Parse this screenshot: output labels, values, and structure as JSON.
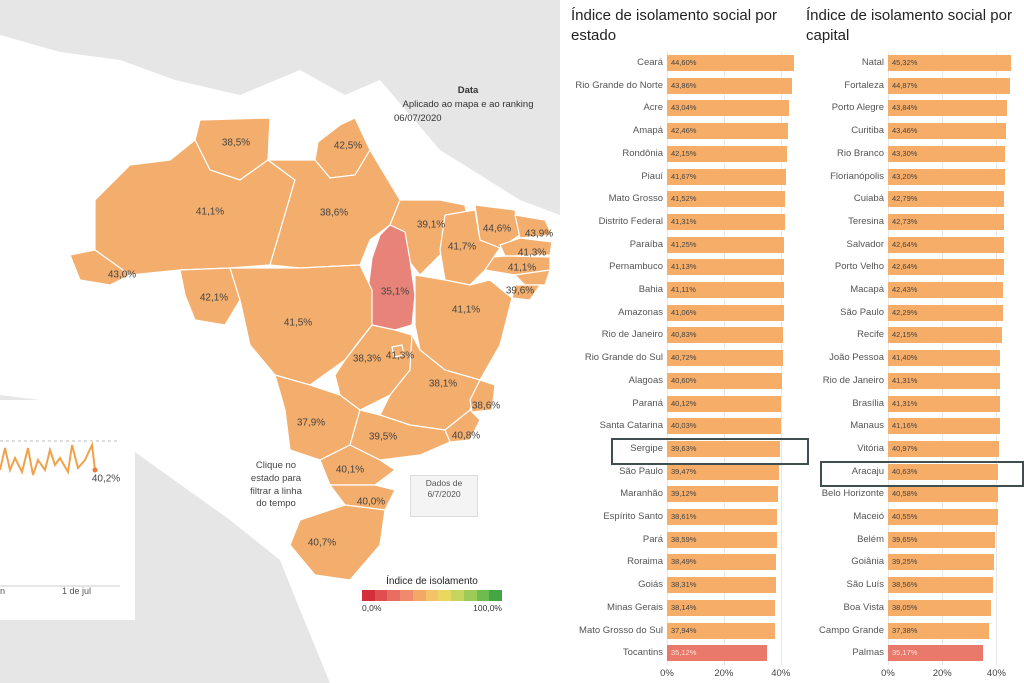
{
  "map": {
    "date_title": "Data",
    "date_applied": "Aplicado ao mapa e ao ranking",
    "date_value": "06/07/2020",
    "click_note": [
      "Clique no",
      "estado para",
      "filtrar a linha",
      "do tempo"
    ],
    "data_note": [
      "Dados de",
      "6/7/2020"
    ],
    "timeline_last_value": "40,2%",
    "timeline_date_tick": "1 de jul",
    "timeline_left_tick": "n",
    "state_values": {
      "RR": "38,5%",
      "AP": "42,5%",
      "AM": "41,1%",
      "PA": "38,6%",
      "MA": "39,1%",
      "CE": "44,6%",
      "RN": "43,9%",
      "PB": "41,3%",
      "PE": "41,1%",
      "PI": "41,7%",
      "AC": "43,0%",
      "RO": "42,1%",
      "TO": "35,1%",
      "MT": "41,5%",
      "BA": "41,1%",
      "SE": "39,6%",
      "GO": "38,3%",
      "DF": "41,3%",
      "MG": "38,1%",
      "ES": "38,6%",
      "RJ": "40,8%",
      "MS": "37,9%",
      "SP": "39,5%",
      "PR": "40,1%",
      "SC": "40,0%",
      "RS": "40,7%"
    },
    "highlight_state": "TO"
  },
  "legend": {
    "title": "Índice de isolamento",
    "min_label": "0,0%",
    "max_label": "100,0%",
    "colors": [
      "#d32f3a",
      "#e14e52",
      "#ea6d64",
      "#f08a6c",
      "#f4a868",
      "#f5c367",
      "#e9d760",
      "#c7d45d",
      "#9ccb57",
      "#6ebb4f",
      "#44a543"
    ]
  },
  "chart_data": [
    {
      "type": "bar",
      "title": "Índice de isolamento social por estado",
      "categories": [
        "Ceará",
        "Rio Grande do Norte",
        "Acre",
        "Amapá",
        "Rondônia",
        "Piauí",
        "Mato Grosso",
        "Distrito Federal",
        "Paraíba",
        "Pernambuco",
        "Bahia",
        "Amazonas",
        "Rio de Janeiro",
        "Rio Grande do Sul",
        "Alagoas",
        "Paraná",
        "Santa Catarina",
        "Sergipe",
        "São Paulo",
        "Maranhão",
        "Espírito Santo",
        "Pará",
        "Roraima",
        "Goiás",
        "Minas Gerais",
        "Mato Grosso do Sul",
        "Tocantins"
      ],
      "values": [
        44.6,
        43.86,
        43.04,
        42.46,
        42.15,
        41.67,
        41.52,
        41.31,
        41.25,
        41.13,
        41.11,
        41.06,
        40.83,
        40.72,
        40.6,
        40.12,
        40.03,
        39.63,
        39.47,
        39.12,
        38.61,
        38.59,
        38.49,
        38.31,
        38.14,
        37.94,
        35.12
      ],
      "labels": [
        "44,60%",
        "43,86%",
        "43,04%",
        "42,46%",
        "42,15%",
        "41,67%",
        "41,52%",
        "41,31%",
        "41,25%",
        "41,13%",
        "41,11%",
        "41,06%",
        "40,83%",
        "40,72%",
        "40,60%",
        "40,12%",
        "40,03%",
        "39,63%",
        "39,47%",
        "39,12%",
        "38,61%",
        "38,59%",
        "38,49%",
        "38,31%",
        "38,14%",
        "37,94%",
        "35,12%"
      ],
      "highlight": "Sergipe",
      "x_ticks": [
        "0%",
        "20%",
        "40%"
      ],
      "xlim": [
        0,
        45
      ]
    },
    {
      "type": "bar",
      "title": "Índice de isolamento social por capital",
      "categories": [
        "Natal",
        "Fortaleza",
        "Porto Alegre",
        "Curitiba",
        "Rio Branco",
        "Florianópolis",
        "Cuiabá",
        "Teresina",
        "Salvador",
        "Porto Velho",
        "Macapá",
        "São Paulo",
        "Recife",
        "João Pessoa",
        "Rio de Janeiro",
        "Brasília",
        "Manaus",
        "Vitória",
        "Aracaju",
        "Belo Horizonte",
        "Maceió",
        "Belém",
        "Goiânia",
        "São Luís",
        "Boa Vista",
        "Campo Grande",
        "Palmas"
      ],
      "values": [
        45.32,
        44.87,
        43.84,
        43.46,
        43.3,
        43.2,
        42.79,
        42.73,
        42.64,
        42.64,
        42.43,
        42.29,
        42.15,
        41.4,
        41.31,
        41.31,
        41.16,
        40.97,
        40.63,
        40.58,
        40.55,
        39.65,
        39.25,
        38.56,
        38.05,
        37.38,
        35.17
      ],
      "labels": [
        "45,32%",
        "44,87%",
        "43,84%",
        "43,46%",
        "43,30%",
        "43,20%",
        "42,79%",
        "42,73%",
        "42,64%",
        "42,64%",
        "42,43%",
        "42,29%",
        "42,15%",
        "41,40%",
        "41,31%",
        "41,31%",
        "41,16%",
        "40,97%",
        "40,63%",
        "40,58%",
        "40,55%",
        "39,65%",
        "39,25%",
        "38,56%",
        "38,05%",
        "37,38%",
        "35,17%"
      ],
      "highlight": "Aracaju",
      "x_ticks": [
        "0%",
        "20%",
        "40%"
      ],
      "xlim": [
        0,
        45
      ]
    }
  ]
}
